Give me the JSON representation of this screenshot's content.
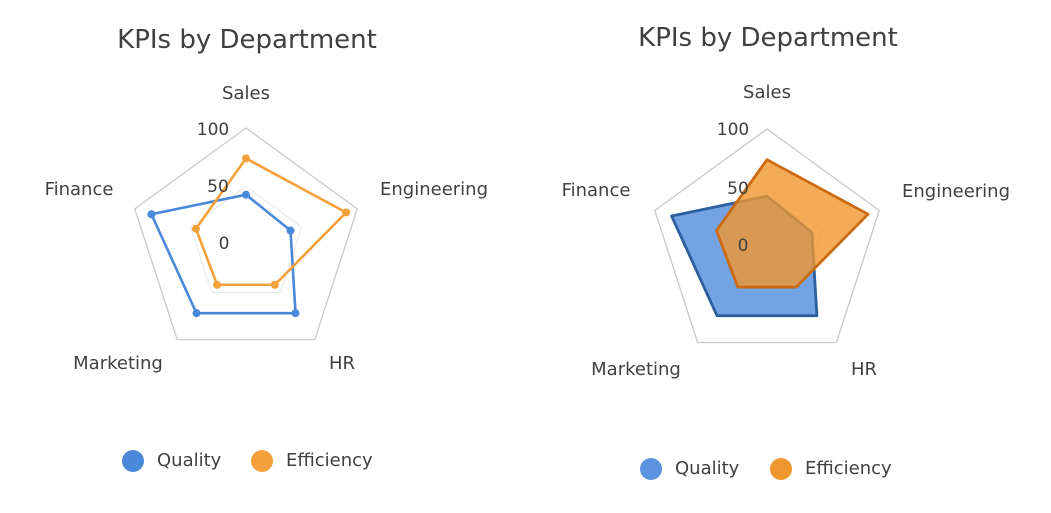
{
  "chart_data": [
    {
      "type": "radar",
      "style": "line",
      "title": "KPIs by Department",
      "categories": [
        "Sales",
        "Engineering",
        "HR",
        "Marketing",
        "Finance"
      ],
      "rlim": [
        0,
        100
      ],
      "ticks": [
        "0",
        "50",
        "100"
      ],
      "series": [
        {
          "name": "Quality",
          "values": [
            43,
            40,
            72,
            72,
            85
          ]
        },
        {
          "name": "Efficiency",
          "values": [
            74,
            90,
            42,
            42,
            45
          ]
        }
      ],
      "legend_position": "bottom"
    },
    {
      "type": "radar",
      "style": "filled",
      "title": "KPIs by Department",
      "categories": [
        "Sales",
        "Engineering",
        "HR",
        "Marketing",
        "Finance"
      ],
      "rlim": [
        0,
        100
      ],
      "ticks": [
        "0",
        "50",
        "100"
      ],
      "series": [
        {
          "name": "Quality",
          "values": [
            43,
            40,
            72,
            72,
            85
          ]
        },
        {
          "name": "Efficiency",
          "values": [
            74,
            90,
            42,
            42,
            45
          ]
        }
      ],
      "legend_position": "bottom"
    }
  ],
  "colors": {
    "quality_line": "#4a88d9",
    "efficiency_line": "#f5a03b",
    "quality_fill": "#5b93de",
    "quality_fill_stroke": "#2c5f9e",
    "efficiency_fill": "#f0962e",
    "efficiency_fill_stroke": "#cc6a12",
    "grid": "#c9c9c9",
    "inner_grid": "#e6e6e6"
  }
}
